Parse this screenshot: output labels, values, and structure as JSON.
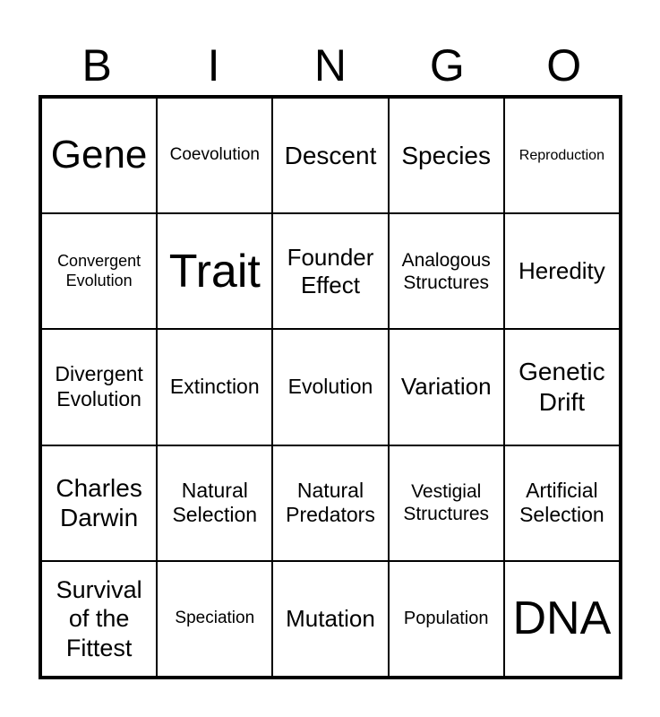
{
  "header": [
    "B",
    "I",
    "N",
    "G",
    "O"
  ],
  "cells": [
    "Gene",
    "Coevolution",
    "Descent",
    "Species",
    "Reproduction",
    "Convergent\nEvolution",
    "Trait",
    "Founder\nEffect",
    "Analogous\nStructures",
    "Heredity",
    "Divergent\nEvolution",
    "Extinction",
    "Evolution",
    "Variation",
    "Genetic\nDrift",
    "Charles\nDarwin",
    "Natural\nSelection",
    "Natural\nPredators",
    "Vestigial\nStructures",
    "Artificial\nSelection",
    "Survival\nof the\nFittest",
    "Speciation",
    "Mutation",
    "Population",
    "DNA"
  ]
}
